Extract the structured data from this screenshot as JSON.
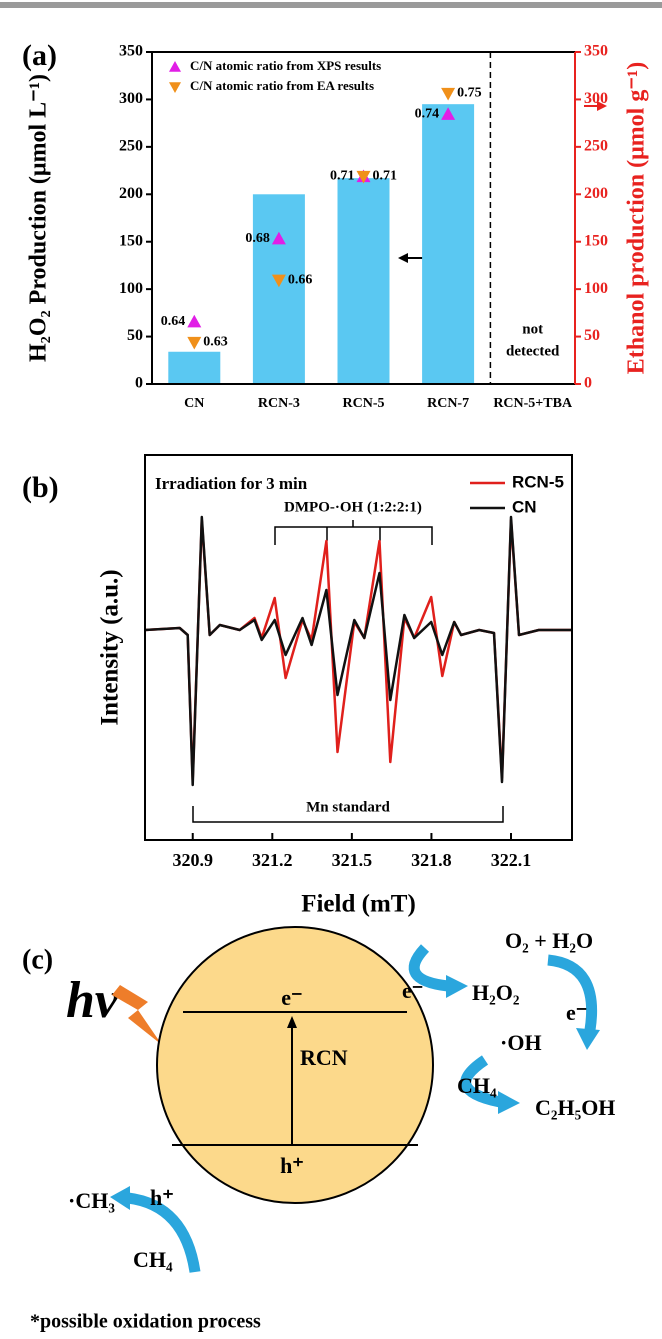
{
  "chart_data": [
    {
      "type": "bar",
      "label": "(a)",
      "categories": [
        "CN",
        "RCN-3",
        "RCN-5",
        "RCN-7",
        "RCN-5+TBA"
      ],
      "values": [
        34,
        200,
        217,
        295,
        null
      ],
      "color": "#5ac8f2",
      "ylabel": "H₂O₂ Production (μmol L⁻¹)",
      "ylim": [
        0,
        350
      ],
      "yticks": [
        0,
        50,
        100,
        150,
        200,
        250,
        300,
        350
      ],
      "y2label": "Ethanol production (μmol g⁻¹)",
      "y2lim": [
        0,
        350
      ],
      "y2ticks": [
        0,
        50,
        100,
        150,
        200,
        250,
        300,
        350
      ],
      "y2color": "#e8221f",
      "y3lim": [
        0.61,
        0.77
      ],
      "series": [
        {
          "name": "C/N atomic ratio from XPS results",
          "color": "#e11ee6",
          "marker": "triangle-up",
          "axis": "y3",
          "values": [
            0.64,
            0.68,
            0.71,
            0.74,
            null
          ]
        },
        {
          "name": "C/N atomic ratio from EA results",
          "color": "#f0901a",
          "marker": "triangle-down",
          "axis": "y3",
          "values": [
            0.63,
            0.66,
            0.71,
            0.75,
            null
          ]
        }
      ],
      "annotation": [
        "not",
        "detected"
      ]
    },
    {
      "type": "line",
      "label": "(b)",
      "xlabel": "Field (mT)",
      "ylabel": "Intensity (a.u.)",
      "xlim": [
        320.72,
        322.33
      ],
      "xticks": [
        320.9,
        321.2,
        321.5,
        321.8,
        322.1
      ],
      "ylim": [
        -210,
        175
      ],
      "x": [
        320.72,
        320.851,
        320.881,
        320.9,
        320.934,
        320.964,
        321.002,
        321.077,
        321.133,
        321.16,
        321.209,
        321.25,
        321.314,
        321.348,
        321.404,
        321.446,
        321.509,
        321.547,
        321.604,
        321.645,
        321.698,
        321.735,
        321.799,
        321.841,
        321.886,
        321.912,
        321.98,
        322.036,
        322.066,
        322.1,
        322.13,
        322.205,
        322.33
      ],
      "series": [
        {
          "name": "RCN-5",
          "color": "#e0201c",
          "values": [
            0,
            2,
            -5,
            -150,
            110,
            -5,
            5,
            0,
            12,
            -8,
            32,
            -48,
            10,
            -10,
            89,
            -122,
            8,
            -8,
            89,
            -132,
            12,
            -8,
            33,
            -46,
            8,
            -5,
            0,
            -3,
            -148,
            110,
            -5,
            0,
            0
          ]
        },
        {
          "name": "CN",
          "color": "#111111",
          "values": [
            0,
            2,
            -5,
            -155,
            113,
            -5,
            5,
            0,
            10,
            -10,
            10,
            -25,
            12,
            -15,
            40,
            -65,
            10,
            -8,
            57,
            -70,
            15,
            -8,
            8,
            -25,
            8,
            -5,
            0,
            -3,
            -152,
            113,
            -5,
            0,
            0
          ]
        }
      ],
      "annotations": [
        "Irradiation for 3 min",
        "DMPO-·OH (1:2:2:1)",
        "Mn standard"
      ]
    }
  ],
  "diagram": {
    "label": "(c)",
    "texts": [
      "hv",
      "e⁻",
      "RCN",
      "h⁺",
      "O₂ + H₂O",
      "e⁻",
      "H₂O₂",
      "e⁻",
      "·OH",
      "CH₄",
      "C₂H₅OH",
      "·CH₃",
      "h⁺",
      "CH₄",
      "*possible oxidation process"
    ]
  }
}
